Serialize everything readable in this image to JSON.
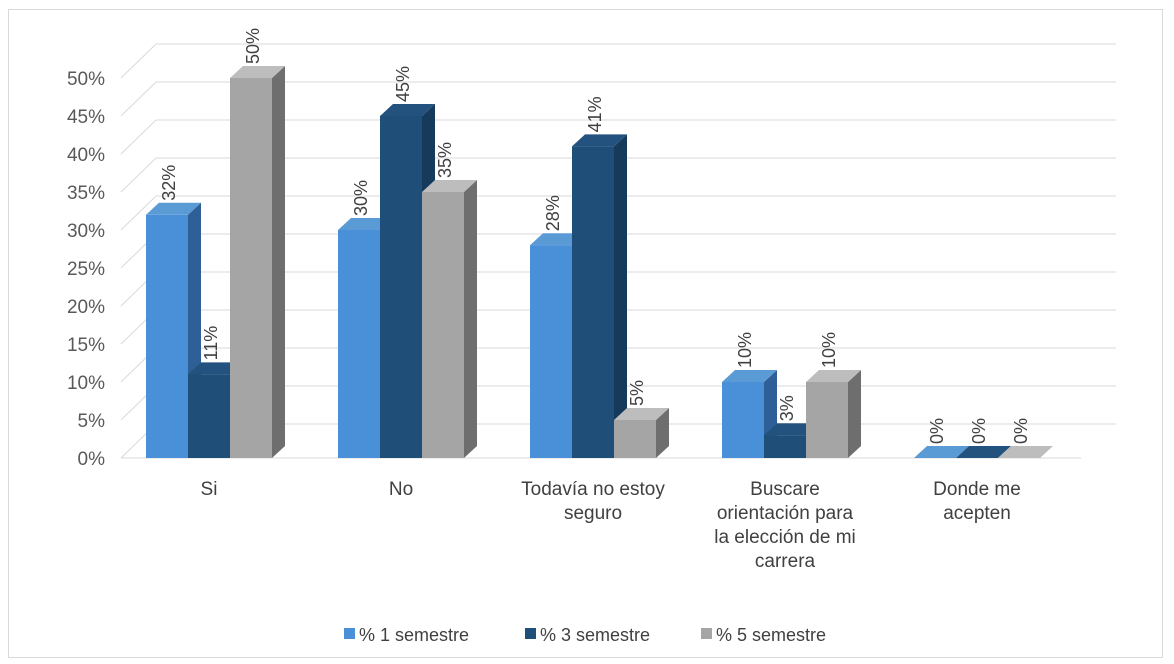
{
  "chart_data": {
    "type": "bar",
    "categories": [
      [
        "Si"
      ],
      [
        "No"
      ],
      [
        "Todavía no estoy",
        "seguro"
      ],
      [
        "Buscare",
        "orientación para",
        "la elección de mi",
        "carrera"
      ],
      [
        "Donde me",
        "acepten"
      ]
    ],
    "series": [
      {
        "name": "% 1 semestre",
        "values": [
          32,
          30,
          28,
          10,
          0
        ],
        "labels": [
          "32%",
          "30%",
          "28%",
          "10%",
          "0%"
        ],
        "color": "#4a90d9",
        "color_top": "#5b9bd5",
        "color_side": "#2e5f96"
      },
      {
        "name": "%  3 semestre",
        "values": [
          11,
          45,
          41,
          3,
          0
        ],
        "labels": [
          "11%",
          "45%",
          "41%",
          "3%",
          "0%"
        ],
        "color": "#1f4e79",
        "color_top": "#24527e",
        "color_side": "#153a5c"
      },
      {
        "name": "% 5 semestre",
        "values": [
          50,
          35,
          5,
          10,
          0
        ],
        "labels": [
          "50%",
          "35%",
          "5%",
          "10%",
          "0%"
        ],
        "color": "#a5a5a5",
        "color_top": "#bdbdbd",
        "color_side": "#6e6e6e"
      }
    ],
    "yticks": [
      "0%",
      "5%",
      "10%",
      "15%",
      "20%",
      "25%",
      "30%",
      "35%",
      "40%",
      "45%",
      "50%"
    ],
    "ylim": [
      0,
      50
    ],
    "grid": true,
    "legend": "bottom",
    "three_d": true
  }
}
